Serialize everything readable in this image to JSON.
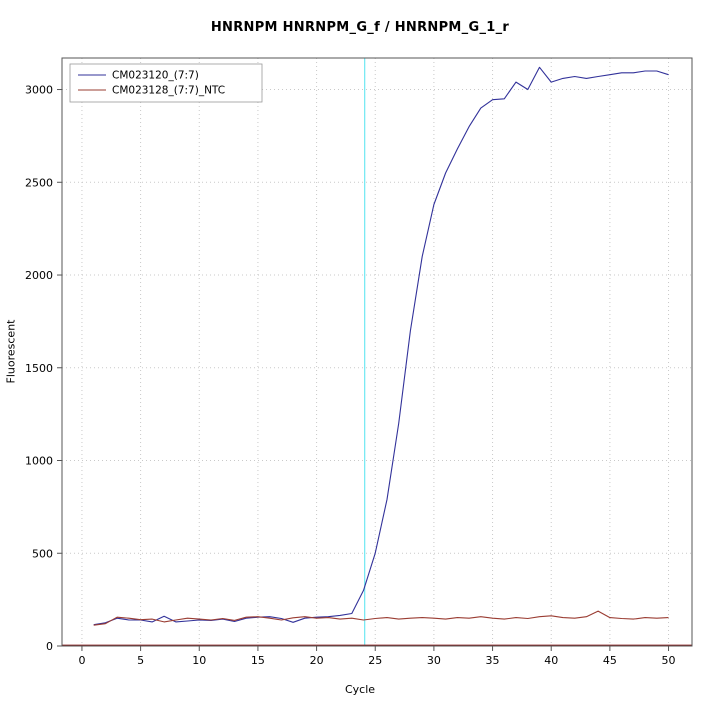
{
  "chart_data": {
    "type": "line",
    "title": "HNRNPM  HNRNPM_G_f / HNRNPM_G_1_r",
    "xlabel": "Cycle",
    "ylabel": "Fluorescent",
    "xlim": [
      -1.7,
      52.0
    ],
    "ylim": [
      0,
      3170
    ],
    "xticks": [
      0,
      5,
      10,
      15,
      20,
      25,
      30,
      35,
      40,
      45,
      50
    ],
    "yticks": [
      0,
      500,
      1000,
      1500,
      2000,
      2500,
      3000
    ],
    "grid": "dotted",
    "grid_color": "#c9c9c9",
    "axis_color": "#555555",
    "threshold_line": {
      "x": 24.1,
      "color": "#6fe8f2"
    },
    "zero_line": {
      "y": 4,
      "color": "#8b2525"
    },
    "legend": {
      "position": "top-left",
      "entries": [
        {
          "label": "CM023120_(7:7)",
          "color": "#32329a"
        },
        {
          "label": "CM023128_(7:7)_NTC",
          "color": "#9a3c32"
        }
      ]
    },
    "x": [
      1,
      2,
      3,
      4,
      5,
      6,
      7,
      8,
      9,
      10,
      11,
      12,
      13,
      14,
      15,
      16,
      17,
      18,
      19,
      20,
      21,
      22,
      23,
      24,
      25,
      26,
      27,
      28,
      29,
      30,
      31,
      32,
      33,
      34,
      35,
      36,
      37,
      38,
      39,
      40,
      41,
      42,
      43,
      44,
      45,
      46,
      47,
      48,
      49,
      50
    ],
    "series": [
      {
        "name": "CM023120_(7:7)",
        "color": "#32329a",
        "values": [
          115,
          125,
          150,
          140,
          140,
          130,
          160,
          130,
          135,
          140,
          138,
          145,
          132,
          150,
          155,
          158,
          148,
          128,
          150,
          155,
          158,
          165,
          175,
          300,
          500,
          790,
          1200,
          1700,
          2100,
          2380,
          2550,
          2680,
          2800,
          2900,
          2945,
          2950,
          3040,
          3000,
          3120,
          3040,
          3060,
          3070,
          3060,
          3070,
          3080,
          3090,
          3090,
          3100,
          3100,
          3080
        ]
      },
      {
        "name": "CM023128_(7:7)_NTC",
        "color": "#9a3c32",
        "values": [
          112,
          120,
          155,
          150,
          142,
          145,
          130,
          140,
          150,
          145,
          140,
          148,
          138,
          155,
          158,
          150,
          140,
          152,
          158,
          150,
          153,
          145,
          150,
          140,
          148,
          153,
          145,
          150,
          153,
          150,
          145,
          153,
          150,
          158,
          150,
          145,
          153,
          148,
          158,
          163,
          153,
          150,
          158,
          188,
          153,
          148,
          145,
          153,
          150,
          153
        ]
      }
    ]
  }
}
